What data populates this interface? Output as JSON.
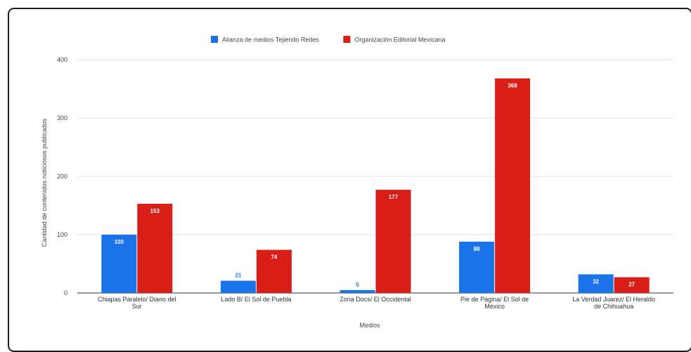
{
  "chart_data": {
    "type": "bar",
    "title": "",
    "xlabel": "Medios",
    "ylabel": "Cantidad de contenidos noticiosos publicados",
    "ylim": [
      0,
      400
    ],
    "yticks": [
      0,
      100,
      200,
      300,
      400
    ],
    "grid": true,
    "legend_position": "top",
    "categories": [
      [
        "Chiapas Paralelo/ Diario del",
        "Sur"
      ],
      [
        "Lado B/ El Sol de Puebla"
      ],
      [
        "Zona Docs/ El Occidental"
      ],
      [
        "Pie de Página/ El Sol de",
        "México"
      ],
      [
        "La Verdad Juarez/ El Heraldo",
        "de Chihuahua"
      ]
    ],
    "series": [
      {
        "name": "Alianza de medios Tejiendo Redes",
        "color": "#1a73e8",
        "values": [
          100,
          21,
          5,
          88,
          32
        ],
        "label_color": "#ffffff"
      },
      {
        "name": "Organización Editorial Mexicana",
        "color": "#d91e18",
        "values": [
          153,
          74,
          177,
          368,
          27
        ],
        "label_color": "#ffffff"
      }
    ]
  }
}
